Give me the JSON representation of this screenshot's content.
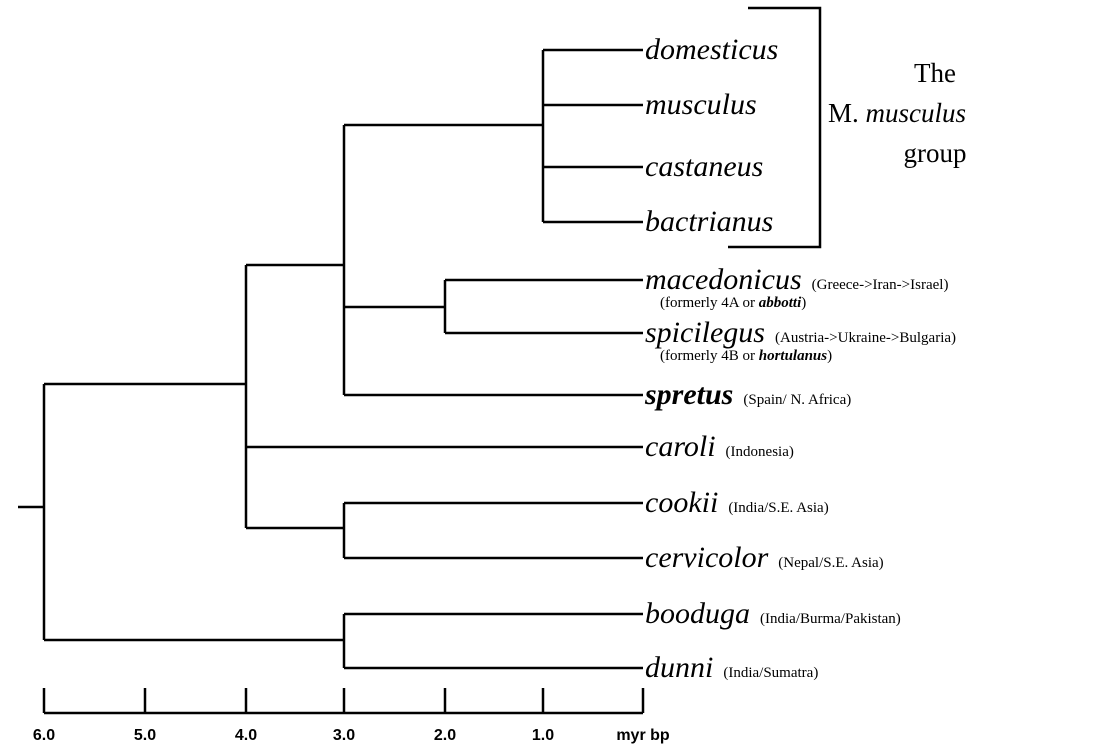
{
  "leaves": [
    {
      "name": "domesticus"
    },
    {
      "name": "musculus"
    },
    {
      "name": "castaneus"
    },
    {
      "name": "bactrianus"
    },
    {
      "name": "macedonicus",
      "range": "(Greece->Iran->Israel)",
      "note": {
        "start": "(formerly 4A or ",
        "italic": "abbotti",
        "end": ")"
      }
    },
    {
      "name": "spicilegus",
      "range": "(Austria->Ukraine->Bulgaria)",
      "note": {
        "start": "(formerly 4B or ",
        "italic": "hortulanus",
        "end": ")"
      }
    },
    {
      "name": "spretus",
      "range": "(Spain/ N. Africa)"
    },
    {
      "name": "caroli",
      "range": "(Indonesia)"
    },
    {
      "name": "cookii",
      "range": "(India/S.E. Asia)"
    },
    {
      "name": "cervicolor",
      "range": "(Nepal/S.E. Asia)"
    },
    {
      "name": "booduga",
      "range": "(India/Burma/Pakistan)"
    },
    {
      "name": "dunni",
      "range": "(India/Sumatra)"
    }
  ],
  "group_label": {
    "line1": "The",
    "prefix": "M.",
    "italic": "musculus",
    "line3": "group"
  },
  "scale": {
    "ticks": [
      "6.0",
      "5.0",
      "4.0",
      "3.0",
      "2.0",
      "1.0"
    ],
    "unit": "myr bp"
  }
}
